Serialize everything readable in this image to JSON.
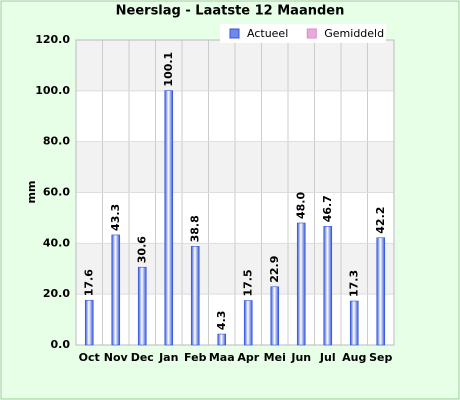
{
  "chart_data": {
    "type": "bar",
    "title": "Neerslag - Laatste 12 Maanden",
    "y_label": "mm",
    "categories": [
      "Oct",
      "Nov",
      "Dec",
      "Jan",
      "Feb",
      "Maa",
      "Apr",
      "Mei",
      "Jun",
      "Jul",
      "Aug",
      "Sep"
    ],
    "series": [
      {
        "name": "Actueel",
        "color": "#3355dd",
        "values": [
          17.6,
          43.3,
          30.6,
          100.1,
          38.8,
          4.3,
          17.5,
          22.9,
          48.0,
          46.7,
          17.3,
          42.2
        ],
        "value_labels": [
          "17.6",
          "43.3",
          "30.6",
          "100.1",
          "38.8",
          "4.3",
          "17.5",
          "22.9",
          "48.0",
          "46.7",
          "17.3",
          "42.2"
        ]
      },
      {
        "name": "Gemiddeld",
        "color": "#dd88cc",
        "values": [
          null,
          null,
          null,
          null,
          null,
          null,
          null,
          null,
          null,
          null,
          null,
          null
        ]
      }
    ],
    "ylim": [
      0,
      120
    ],
    "yticks": [
      {
        "value": 0,
        "label": "0.0"
      },
      {
        "value": 20,
        "label": "20.0"
      },
      {
        "value": 40,
        "label": "40.0"
      },
      {
        "value": 60,
        "label": "60.0"
      },
      {
        "value": 80,
        "label": "80.0"
      },
      {
        "value": 100,
        "label": "100.0"
      },
      {
        "value": 120,
        "label": "120.0"
      }
    ],
    "grid": true,
    "legend": "top-right"
  }
}
